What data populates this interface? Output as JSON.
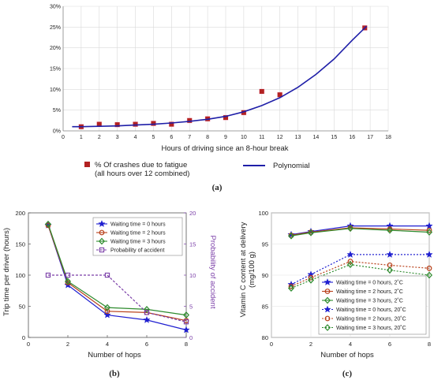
{
  "chart_data": [
    {
      "id": "a",
      "type": "scatter",
      "caption": "(a)",
      "xlabel": "Hours of driving since an 8-hour break",
      "ylabel": "",
      "xlim": [
        0,
        18
      ],
      "ylim": [
        0,
        30
      ],
      "x_ticks": [
        0,
        1,
        2,
        3,
        4,
        5,
        6,
        7,
        8,
        9,
        10,
        11,
        12,
        13,
        14,
        15,
        16,
        17,
        18
      ],
      "y_ticks": [
        0,
        5,
        10,
        15,
        20,
        25,
        30
      ],
      "y_tick_suffix": "%",
      "colors": {
        "points": "#b22222",
        "curve": "#1f1fa8"
      },
      "series": [
        {
          "name": "% Of crashes due to fatigue",
          "name_line2": "(all hours over 12 combined)",
          "kind": "points",
          "x": [
            1,
            2,
            3,
            4,
            5,
            6,
            7,
            8,
            9,
            10,
            11,
            12,
            16.7
          ],
          "y": [
            1.0,
            1.6,
            1.5,
            1.6,
            1.8,
            1.6,
            2.5,
            2.9,
            3.2,
            4.4,
            9.5,
            8.7,
            24.8
          ]
        },
        {
          "name": "Polynomial",
          "kind": "line",
          "x": [
            0.5,
            1,
            2,
            3,
            4,
            5,
            6,
            7,
            8,
            9,
            10,
            11,
            12,
            13,
            14,
            15,
            16,
            16.8
          ],
          "y": [
            1.0,
            1.0,
            1.1,
            1.2,
            1.4,
            1.6,
            1.9,
            2.3,
            2.8,
            3.5,
            4.6,
            6.1,
            8.0,
            10.5,
            13.6,
            17.3,
            21.8,
            25.2
          ]
        }
      ],
      "legend_position": "bottom"
    },
    {
      "id": "b",
      "type": "line",
      "caption": "(b)",
      "xlabel": "Number of hops",
      "ylabel": "Trip time per driver (hours)",
      "y2label": "Probability of accident",
      "xlim": [
        0,
        8
      ],
      "ylim": [
        0,
        200
      ],
      "y2lim": [
        0,
        20
      ],
      "x_ticks": [
        0,
        2,
        4,
        6,
        8
      ],
      "y_ticks": [
        0,
        50,
        100,
        150,
        200
      ],
      "y2_ticks": [
        0,
        5,
        10,
        15,
        20
      ],
      "series": [
        {
          "name": "Waiting time = 0 hours",
          "color": "#1f1fd0",
          "marker": "star",
          "dash": "",
          "axis": "left",
          "x": [
            1,
            2,
            4,
            6,
            8
          ],
          "y": [
            180,
            84,
            36,
            28,
            12
          ]
        },
        {
          "name": "Waiting time = 2 hours",
          "color": "#b8401a",
          "marker": "circle",
          "dash": "",
          "axis": "left",
          "x": [
            1,
            2,
            4,
            6,
            8
          ],
          "y": [
            180,
            88,
            42,
            40,
            27
          ]
        },
        {
          "name": "Waiting time = 3 hours",
          "color": "#2e8b2e",
          "marker": "diamond",
          "dash": "",
          "axis": "left",
          "x": [
            1,
            2,
            4,
            6,
            8
          ],
          "y": [
            182,
            90,
            48,
            45,
            36
          ]
        },
        {
          "name": "Probability of accident",
          "color": "#7b3fa8",
          "marker": "square",
          "dash": "3,2",
          "axis": "right",
          "x": [
            1,
            2,
            4,
            6,
            8
          ],
          "y": [
            10,
            10,
            10,
            4,
            2.5
          ]
        }
      ],
      "legend_position": "top-right"
    },
    {
      "id": "c",
      "type": "line",
      "caption": "(c)",
      "xlabel": "Number of hops",
      "ylabel": "Vitamin C content at delivery",
      "ylabel_line2": "(mg/100 g)",
      "xlim": [
        0,
        8
      ],
      "ylim": [
        80,
        100
      ],
      "x_ticks": [
        0,
        2,
        4,
        6,
        8
      ],
      "y_ticks": [
        80,
        85,
        90,
        95,
        100
      ],
      "series": [
        {
          "name": "Waiting time = 0 hours, 2˚C",
          "color": "#1f1fd0",
          "marker": "star",
          "dash": "",
          "x": [
            1,
            2,
            4,
            6,
            8
          ],
          "y": [
            96.5,
            97.0,
            97.9,
            97.9,
            97.9
          ]
        },
        {
          "name": "Waiting time = 2 hours, 2˚C",
          "color": "#b8401a",
          "marker": "circle",
          "dash": "",
          "x": [
            1,
            2,
            4,
            6,
            8
          ],
          "y": [
            96.4,
            96.9,
            97.6,
            97.4,
            97.2
          ]
        },
        {
          "name": "Waiting time = 3 hours, 2˚C",
          "color": "#2e8b2e",
          "marker": "diamond",
          "dash": "",
          "x": [
            1,
            2,
            4,
            6,
            8
          ],
          "y": [
            96.3,
            96.8,
            97.5,
            97.2,
            96.9
          ]
        },
        {
          "name": "Waiting time = 0 hours, 20˚C",
          "color": "#1f1fd0",
          "marker": "star",
          "dash": "2,2",
          "x": [
            1,
            2,
            4,
            6,
            8
          ],
          "y": [
            88.5,
            90.1,
            93.3,
            93.3,
            93.3
          ]
        },
        {
          "name": "Waiting time = 2 hours, 20˚C",
          "color": "#b8401a",
          "marker": "circle",
          "dash": "2,2",
          "x": [
            1,
            2,
            4,
            6,
            8
          ],
          "y": [
            88.2,
            89.6,
            92.2,
            91.6,
            91.1
          ]
        },
        {
          "name": "Waiting time = 3 hours, 20˚C",
          "color": "#2e8b2e",
          "marker": "diamond",
          "dash": "2,2",
          "x": [
            1,
            2,
            4,
            6,
            8
          ],
          "y": [
            87.9,
            89.2,
            91.7,
            90.8,
            90.0
          ]
        }
      ],
      "legend_position": "bottom-right"
    }
  ]
}
